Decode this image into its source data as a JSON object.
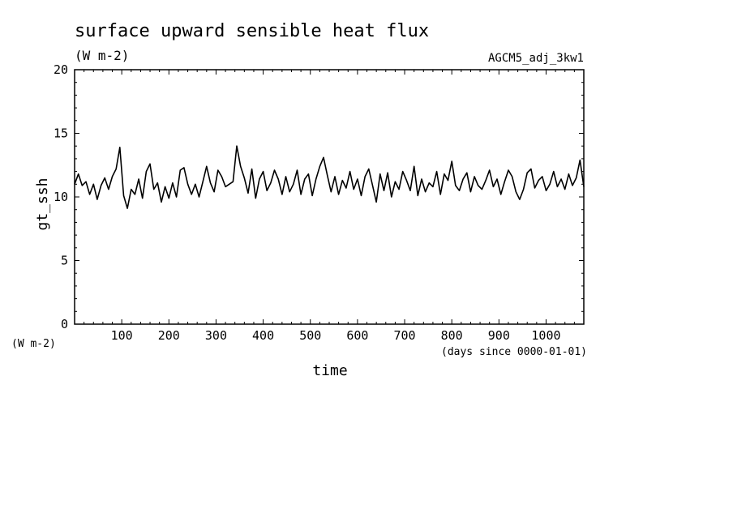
{
  "chart_data": {
    "type": "line",
    "title": "surface upward sensible heat flux",
    "units": "(W m-2)",
    "run_label": "AGCM5_adj_3kw1",
    "xlabel": "time",
    "xunits": "(days since 0000-01-01)",
    "ylabel": "gt_ssh",
    "yunits": "(W m-2)",
    "xlim": [
      0,
      1080
    ],
    "ylim": [
      0,
      20
    ],
    "xticks": [
      100,
      200,
      300,
      400,
      500,
      600,
      700,
      800,
      900,
      1000
    ],
    "yticks": [
      0,
      5,
      10,
      15,
      20
    ],
    "grid": false,
    "series": [
      {
        "color": "#000000",
        "x": [
          0,
          8,
          16,
          24,
          32,
          40,
          48,
          56,
          64,
          72,
          80,
          88,
          96,
          104,
          112,
          120,
          128,
          136,
          144,
          152,
          160,
          168,
          176,
          184,
          192,
          200,
          208,
          216,
          224,
          232,
          240,
          248,
          256,
          264,
          272,
          280,
          288,
          296,
          304,
          312,
          320,
          328,
          336,
          344,
          352,
          360,
          368,
          376,
          384,
          392,
          400,
          408,
          416,
          424,
          432,
          440,
          448,
          456,
          464,
          472,
          480,
          488,
          496,
          504,
          512,
          520,
          528,
          536,
          544,
          552,
          560,
          568,
          576,
          584,
          592,
          600,
          608,
          616,
          624,
          632,
          640,
          648,
          656,
          664,
          672,
          680,
          688,
          696,
          704,
          712,
          720,
          728,
          736,
          744,
          752,
          760,
          768,
          776,
          784,
          792,
          800,
          808,
          816,
          824,
          832,
          840,
          848,
          856,
          864,
          872,
          880,
          888,
          896,
          904,
          912,
          920,
          928,
          936,
          944,
          952,
          960,
          968,
          976,
          984,
          992,
          1000,
          1008,
          1016,
          1024,
          1032,
          1040,
          1048,
          1056,
          1064,
          1072,
          1080
        ],
        "y": [
          11.0,
          11.8,
          10.9,
          11.2,
          10.2,
          11.0,
          9.8,
          10.9,
          11.5,
          10.6,
          11.6,
          12.2,
          13.9,
          10.1,
          9.1,
          10.6,
          10.2,
          11.4,
          9.9,
          12.0,
          12.6,
          10.6,
          11.1,
          9.6,
          10.8,
          9.9,
          11.1,
          10.0,
          12.1,
          12.3,
          11.0,
          10.2,
          11.0,
          10.0,
          11.2,
          12.4,
          11.1,
          10.4,
          12.1,
          11.6,
          10.8,
          11.0,
          11.2,
          14.0,
          12.4,
          11.5,
          10.3,
          12.2,
          9.9,
          11.4,
          12.0,
          10.5,
          11.1,
          12.1,
          11.4,
          10.2,
          11.6,
          10.4,
          11.0,
          12.1,
          10.2,
          11.4,
          11.8,
          10.1,
          11.4,
          12.4,
          13.1,
          11.7,
          10.4,
          11.6,
          10.2,
          11.3,
          10.7,
          12.0,
          10.6,
          11.4,
          10.1,
          11.6,
          12.2,
          10.9,
          9.6,
          11.8,
          10.5,
          11.9,
          10.0,
          11.2,
          10.6,
          12.0,
          11.3,
          10.5,
          12.4,
          10.1,
          11.4,
          10.4,
          11.1,
          10.8,
          12.0,
          10.2,
          11.8,
          11.3,
          12.8,
          10.9,
          10.5,
          11.4,
          11.9,
          10.4,
          11.6,
          10.9,
          10.6,
          11.3,
          12.1,
          10.8,
          11.4,
          10.2,
          11.2,
          12.1,
          11.6,
          10.4,
          9.8,
          10.6,
          11.9,
          12.2,
          10.7,
          11.3,
          11.6,
          10.5,
          11.0,
          12.0,
          10.8,
          11.4,
          10.6,
          11.8,
          10.9,
          11.5,
          12.9,
          10.8
        ]
      }
    ]
  }
}
